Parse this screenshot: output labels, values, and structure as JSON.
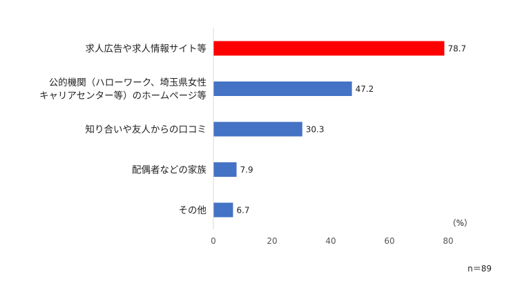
{
  "chart_data": {
    "type": "bar",
    "orientation": "horizontal",
    "categories": [
      [
        "求人広告や求人情報サイト等"
      ],
      [
        "公的機関（ハローワーク、埼玉県女性",
        "キャリアセンター等）のホームページ等"
      ],
      [
        "知り合いや友人からの口コミ"
      ],
      [
        "配偶者などの家族"
      ],
      [
        "その他"
      ]
    ],
    "values": [
      78.7,
      47.2,
      30.3,
      7.9,
      6.7
    ],
    "value_labels": [
      "78.7",
      "47.2",
      "30.3",
      "7.9",
      "6.7"
    ],
    "bar_colors": [
      "#ff0000",
      "#4472c4",
      "#4472c4",
      "#4472c4",
      "#4472c4"
    ],
    "x_ticks": [
      "0",
      "20",
      "40",
      "60",
      "80"
    ],
    "xlim": [
      0,
      80
    ],
    "unit": "（%）",
    "note": "n＝89",
    "grid": false,
    "legend": "none"
  }
}
